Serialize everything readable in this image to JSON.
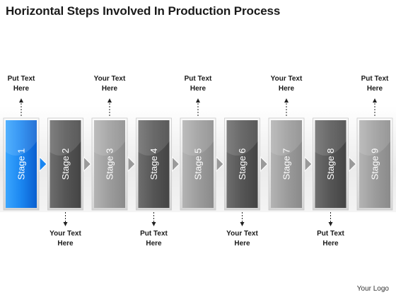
{
  "title": "Horizontal Steps Involved In Production Process",
  "logo_text": "Your Logo",
  "colors": {
    "active_top": "#2b9aff",
    "active_bottom": "#0a66d8",
    "dark": "#5a5a5a",
    "light": "#9a9a9a"
  },
  "stages": [
    {
      "label": "Stage 1",
      "tone": "active",
      "callout_pos": "top",
      "callout": [
        "Put Text",
        "Here"
      ]
    },
    {
      "label": "Stage 2",
      "tone": "dark",
      "callout_pos": "bottom",
      "callout": [
        "Your Text",
        "Here"
      ]
    },
    {
      "label": "Stage 3",
      "tone": "light",
      "callout_pos": "top",
      "callout": [
        "Your Text",
        "Here"
      ]
    },
    {
      "label": "Stage 4",
      "tone": "dark",
      "callout_pos": "bottom",
      "callout": [
        "Put Text",
        "Here"
      ]
    },
    {
      "label": "Stage 5",
      "tone": "light",
      "callout_pos": "top",
      "callout": [
        "Put Text",
        "Here"
      ]
    },
    {
      "label": "Stage 6",
      "tone": "dark",
      "callout_pos": "bottom",
      "callout": [
        "Your Text",
        "Here"
      ]
    },
    {
      "label": "Stage 7",
      "tone": "light",
      "callout_pos": "top",
      "callout": [
        "Your Text",
        "Here"
      ]
    },
    {
      "label": "Stage 8",
      "tone": "dark",
      "callout_pos": "bottom",
      "callout": [
        "Put Text",
        "Here"
      ]
    },
    {
      "label": "Stage 9",
      "tone": "light",
      "callout_pos": "top",
      "callout": [
        "Put Text",
        "Here"
      ]
    }
  ]
}
